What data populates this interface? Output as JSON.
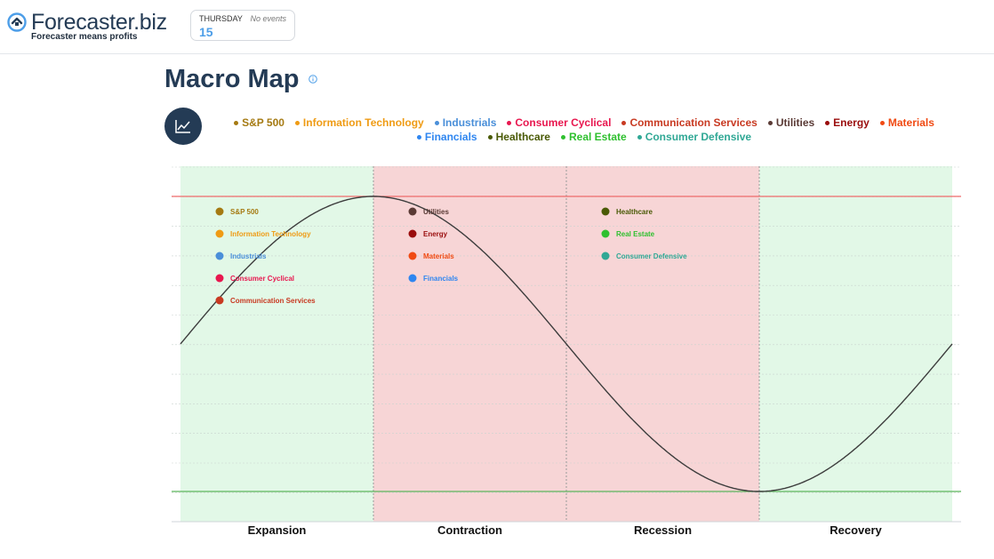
{
  "header": {
    "brand_name": "Forecaster",
    "brand_domain": ".biz",
    "tagline": "Forecaster means profits",
    "day_name": "THURSDAY",
    "day_number": "15",
    "events_status": "No events"
  },
  "page": {
    "title": "Macro Map",
    "info_icon": "info-circle-icon",
    "chart_toggle_icon": "line-chart-icon"
  },
  "colors": {
    "brand": "#243b55",
    "expansion_bg": "#e2f8e7",
    "contraction_bg": "#f7d5d6",
    "peak_line": "#ef6b6b",
    "trough_line": "#5bb55b",
    "curve": "#3d3d3d"
  },
  "chart_data": {
    "type": "line",
    "title": "",
    "xlabel": "",
    "ylabel": "",
    "curve": "business-cycle-sine",
    "phases": [
      {
        "name": "Expansion",
        "bg": "#e2f8e7"
      },
      {
        "name": "Contraction",
        "bg": "#f7d5d6"
      },
      {
        "name": "Recession",
        "bg": "#f7d5d6"
      },
      {
        "name": "Recovery",
        "bg": "#e2f8e7"
      }
    ],
    "grid": true,
    "legend_position": "top",
    "series": [
      {
        "name": "S&P 500",
        "color": "#a57a12",
        "phase": "Expansion"
      },
      {
        "name": "Information Technology",
        "color": "#ef9b14",
        "phase": "Expansion"
      },
      {
        "name": "Industrials",
        "color": "#4a8fd9",
        "phase": "Expansion"
      },
      {
        "name": "Consumer Cyclical",
        "color": "#e8174f",
        "phase": "Expansion"
      },
      {
        "name": "Communication Services",
        "color": "#c83a22",
        "phase": "Expansion"
      },
      {
        "name": "Utilities",
        "color": "#5a3a35",
        "phase": "Contraction"
      },
      {
        "name": "Energy",
        "color": "#9a0d0d",
        "phase": "Contraction"
      },
      {
        "name": "Materials",
        "color": "#f04a13",
        "phase": "Contraction"
      },
      {
        "name": "Financials",
        "color": "#2f86f0",
        "phase": "Contraction"
      },
      {
        "name": "Healthcare",
        "color": "#4a5a06",
        "phase": "Recession"
      },
      {
        "name": "Real Estate",
        "color": "#2fc02f",
        "phase": "Recession"
      },
      {
        "name": "Consumer Defensive",
        "color": "#30a895",
        "phase": "Recession"
      }
    ]
  }
}
